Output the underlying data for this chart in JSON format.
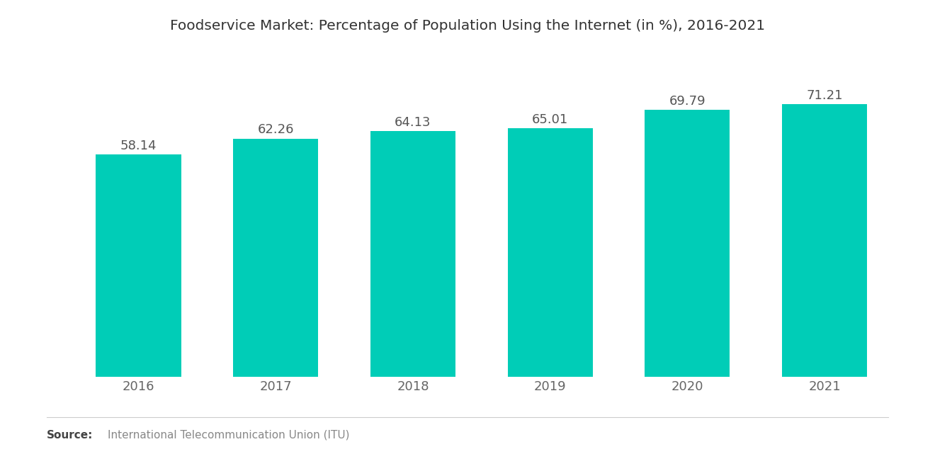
{
  "title": "Foodservice Market: Percentage of Population Using the Internet (in %), 2016-2021",
  "years": [
    "2016",
    "2017",
    "2018",
    "2019",
    "2020",
    "2021"
  ],
  "values": [
    58.14,
    62.26,
    64.13,
    65.01,
    69.79,
    71.21
  ],
  "bar_color": "#00CDB7",
  "label_color": "#555555",
  "source_bold": "Source:",
  "source_text": "International Telecommunication Union (ITU)",
  "background_color": "#ffffff",
  "title_fontsize": 14.5,
  "label_fontsize": 13,
  "tick_fontsize": 13,
  "source_fontsize": 11,
  "bar_width": 0.62,
  "ylim": [
    0,
    80
  ],
  "title_color": "#333333",
  "tick_color": "#666666"
}
